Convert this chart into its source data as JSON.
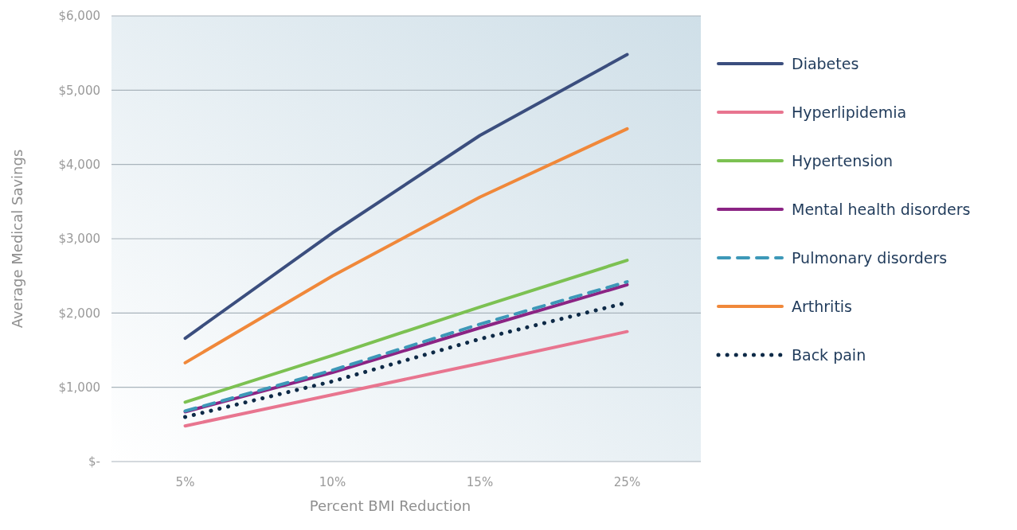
{
  "chart_data": {
    "type": "line",
    "xlabel": "Percent BMI Reduction",
    "ylabel": "Average Medical Savings",
    "categories": [
      "5%",
      "10%",
      "15%",
      "25%"
    ],
    "ylim": [
      0,
      6000
    ],
    "yticks": [
      {
        "value": 0,
        "label": "$-"
      },
      {
        "value": 1000,
        "label": "$1,000"
      },
      {
        "value": 2000,
        "label": "$2,000"
      },
      {
        "value": 3000,
        "label": "$3,000"
      },
      {
        "value": 4000,
        "label": "$4,000"
      },
      {
        "value": 5000,
        "label": "$5,000"
      },
      {
        "value": 6000,
        "label": "$6,000"
      }
    ],
    "grid": "y",
    "legend": "right",
    "series": [
      {
        "name": "Diabetes",
        "color": "#3b4e7e",
        "values": [
          1660,
          3080,
          4390,
          5480
        ]
      },
      {
        "name": "Hyperlipidemia",
        "color": "#e8758f",
        "values": [
          480,
          900,
          1320,
          1750
        ]
      },
      {
        "name": "Hypertension",
        "color": "#7cc152",
        "values": [
          800,
          1430,
          2080,
          2710
        ]
      },
      {
        "name": "Mental health disorders",
        "color": "#8b2484",
        "values": [
          670,
          1200,
          1800,
          2380
        ]
      },
      {
        "name": "Pulmonary disorders",
        "color": "#3d98b8",
        "values": [
          680,
          1230,
          1850,
          2420
        ],
        "line_style": "dashed"
      },
      {
        "name": "Arthritis",
        "color": "#f0883a",
        "values": [
          1330,
          2500,
          3560,
          4480
        ]
      },
      {
        "name": "Back pain",
        "color": "#0e2a47",
        "values": [
          600,
          1080,
          1650,
          2140
        ],
        "line_style": "dotted"
      }
    ]
  }
}
